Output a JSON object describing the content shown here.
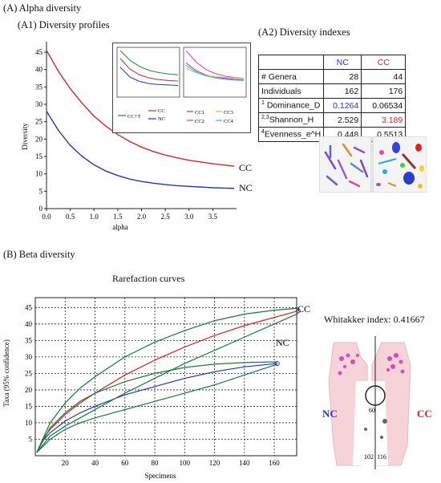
{
  "labels": {
    "alpha_section": "(A) Alpha diversity",
    "a1": "(A1)  Diversity profiles",
    "a2": "(A2)  Diversity indexes",
    "beta_section": "(B) Beta diversity",
    "rarefaction": "Rarefaction  curves",
    "whittaker": "Whitakker index: 0.41667",
    "venn_nc": "NC",
    "venn_cc": "CC",
    "venn_nc_count": "102",
    "venn_shared": "60",
    "venn_cc_count": "116"
  },
  "colors": {
    "nc": "#2233cc",
    "cc": "#dd2222",
    "ci": "#1a7a3a",
    "legend_ccT": "#1a8a3a"
  },
  "table": {
    "headers": [
      "",
      "NC",
      "CC"
    ],
    "rows": [
      {
        "label": "# Genera",
        "sup": "",
        "nc": "28",
        "cc": "44"
      },
      {
        "label": "Individuals",
        "sup": "",
        "nc": "162",
        "cc": "176"
      },
      {
        "label": " Dominance_D",
        "sup": "1",
        "nc": "0.1264",
        "cc": "0.06534"
      },
      {
        "label": "Shannon_H",
        "sup": "2,3",
        "nc": "2.529",
        "cc": "3.189"
      },
      {
        "label": "Evenness_e^H",
        "sup": "4",
        "nc": "0.448",
        "cc": "0.5513"
      }
    ]
  },
  "chart_data": [
    {
      "type": "line",
      "xlabel": "alpha",
      "ylabel": "Diversity",
      "xlim": [
        0,
        4
      ],
      "ylim": [
        0,
        48
      ],
      "xticks": [
        "0.0",
        "0.5",
        "1.0",
        "1.5",
        "2.0",
        "2.5",
        "3.0",
        "3.5"
      ],
      "yticks": [
        "0",
        "5",
        "10",
        "15",
        "20",
        "25",
        "30",
        "35",
        "40",
        "45"
      ],
      "x": [
        0,
        0.25,
        0.5,
        0.75,
        1.0,
        1.25,
        1.5,
        1.75,
        2.0,
        2.25,
        2.5,
        2.75,
        3.0,
        3.25,
        3.5,
        3.75,
        3.95
      ],
      "series": [
        {
          "name": "CC",
          "values": [
            45.5,
            39.5,
            34.5,
            30.3,
            26.6,
            23.7,
            21.3,
            19.3,
            17.7,
            16.4,
            15.4,
            14.6,
            13.9,
            13.4,
            12.9,
            12.5,
            12.2
          ]
        },
        {
          "name": "NC",
          "values": [
            28,
            22.5,
            18.2,
            15.0,
            12.6,
            10.8,
            9.5,
            8.5,
            7.8,
            7.3,
            6.9,
            6.6,
            6.4,
            6.2,
            6.0,
            5.9,
            5.8
          ]
        }
      ],
      "grid": false
    },
    {
      "type": "line",
      "inset": "left",
      "legend": [
        "CC+T",
        "CC",
        "NC"
      ],
      "series": [
        {
          "name": "CC+T",
          "values": [
            1.0,
            0.78,
            0.64,
            0.55,
            0.5,
            0.47,
            0.45
          ]
        },
        {
          "name": "CC",
          "values": [
            0.82,
            0.58,
            0.45,
            0.38,
            0.34,
            0.32,
            0.31
          ]
        },
        {
          "name": "NC",
          "values": [
            0.62,
            0.4,
            0.3,
            0.25,
            0.23,
            0.22,
            0.21
          ]
        }
      ]
    },
    {
      "type": "line",
      "inset": "right",
      "legend": [
        "CC1",
        "CC2",
        "CC3",
        "CC4"
      ],
      "series": [
        {
          "name": "CC1",
          "values": [
            0.72,
            0.55,
            0.45,
            0.4,
            0.37,
            0.35,
            0.34
          ]
        },
        {
          "name": "CC2",
          "values": [
            1.0,
            0.75,
            0.58,
            0.48,
            0.42,
            0.39,
            0.37
          ]
        },
        {
          "name": "CC3",
          "values": [
            0.6,
            0.5,
            0.44,
            0.41,
            0.39,
            0.38,
            0.37
          ]
        },
        {
          "name": "CC4",
          "values": [
            0.66,
            0.52,
            0.43,
            0.38,
            0.35,
            0.33,
            0.32
          ]
        }
      ]
    },
    {
      "type": "line",
      "title": "Rarefaction  curves",
      "xlabel": "Specimens",
      "ylabel": "Taxa (95% confidence)",
      "xlim": [
        0,
        175
      ],
      "ylim": [
        0,
        48
      ],
      "xticks": [
        "20",
        "40",
        "60",
        "80",
        "100",
        "120",
        "140",
        "160"
      ],
      "yticks": [
        "5",
        "10",
        "15",
        "20",
        "25",
        "30",
        "35",
        "40",
        "45"
      ],
      "grid": true,
      "series": [
        {
          "name": "CC",
          "x": [
            1,
            5,
            10,
            20,
            30,
            40,
            60,
            80,
            100,
            120,
            140,
            160,
            176
          ],
          "values": [
            1,
            5,
            8,
            12.5,
            16,
            19,
            24.5,
            29,
            33,
            36.5,
            39.5,
            42,
            44
          ]
        },
        {
          "name": "NC",
          "x": [
            1,
            5,
            10,
            20,
            30,
            40,
            60,
            80,
            100,
            120,
            140,
            162
          ],
          "values": [
            1,
            4.5,
            7,
            10.5,
            13,
            15,
            18.5,
            21,
            23.5,
            25.5,
            27,
            28
          ]
        },
        {
          "name": "",
          "x": [
            1,
            10,
            20,
            30,
            40,
            60,
            80,
            100,
            120,
            140,
            160,
            176
          ],
          "values": [
            1,
            10,
            16,
            20.5,
            24,
            30,
            34.5,
            38,
            41,
            43,
            44.2,
            44.8
          ]
        },
        {
          "name": "",
          "x": [
            1,
            10,
            20,
            30,
            40,
            60,
            80,
            100,
            120,
            140,
            160,
            176
          ],
          "values": [
            1,
            6,
            9,
            11.5,
            14,
            19,
            23.5,
            28,
            32,
            36,
            40,
            43.2
          ]
        },
        {
          "name": "",
          "x": [
            1,
            10,
            20,
            30,
            40,
            60,
            80,
            100,
            120,
            140,
            162
          ],
          "values": [
            1,
            8.5,
            13,
            16.5,
            19,
            22.5,
            25,
            26.8,
            27.8,
            28.3,
            28.5
          ]
        },
        {
          "name": "",
          "x": [
            1,
            10,
            20,
            30,
            40,
            60,
            80,
            100,
            120,
            140,
            162
          ],
          "values": [
            1,
            5,
            8,
            10,
            11.5,
            14,
            16.5,
            19,
            21.5,
            24.5,
            27.8
          ]
        }
      ],
      "end_labels": [
        "CC",
        "NC"
      ]
    }
  ]
}
